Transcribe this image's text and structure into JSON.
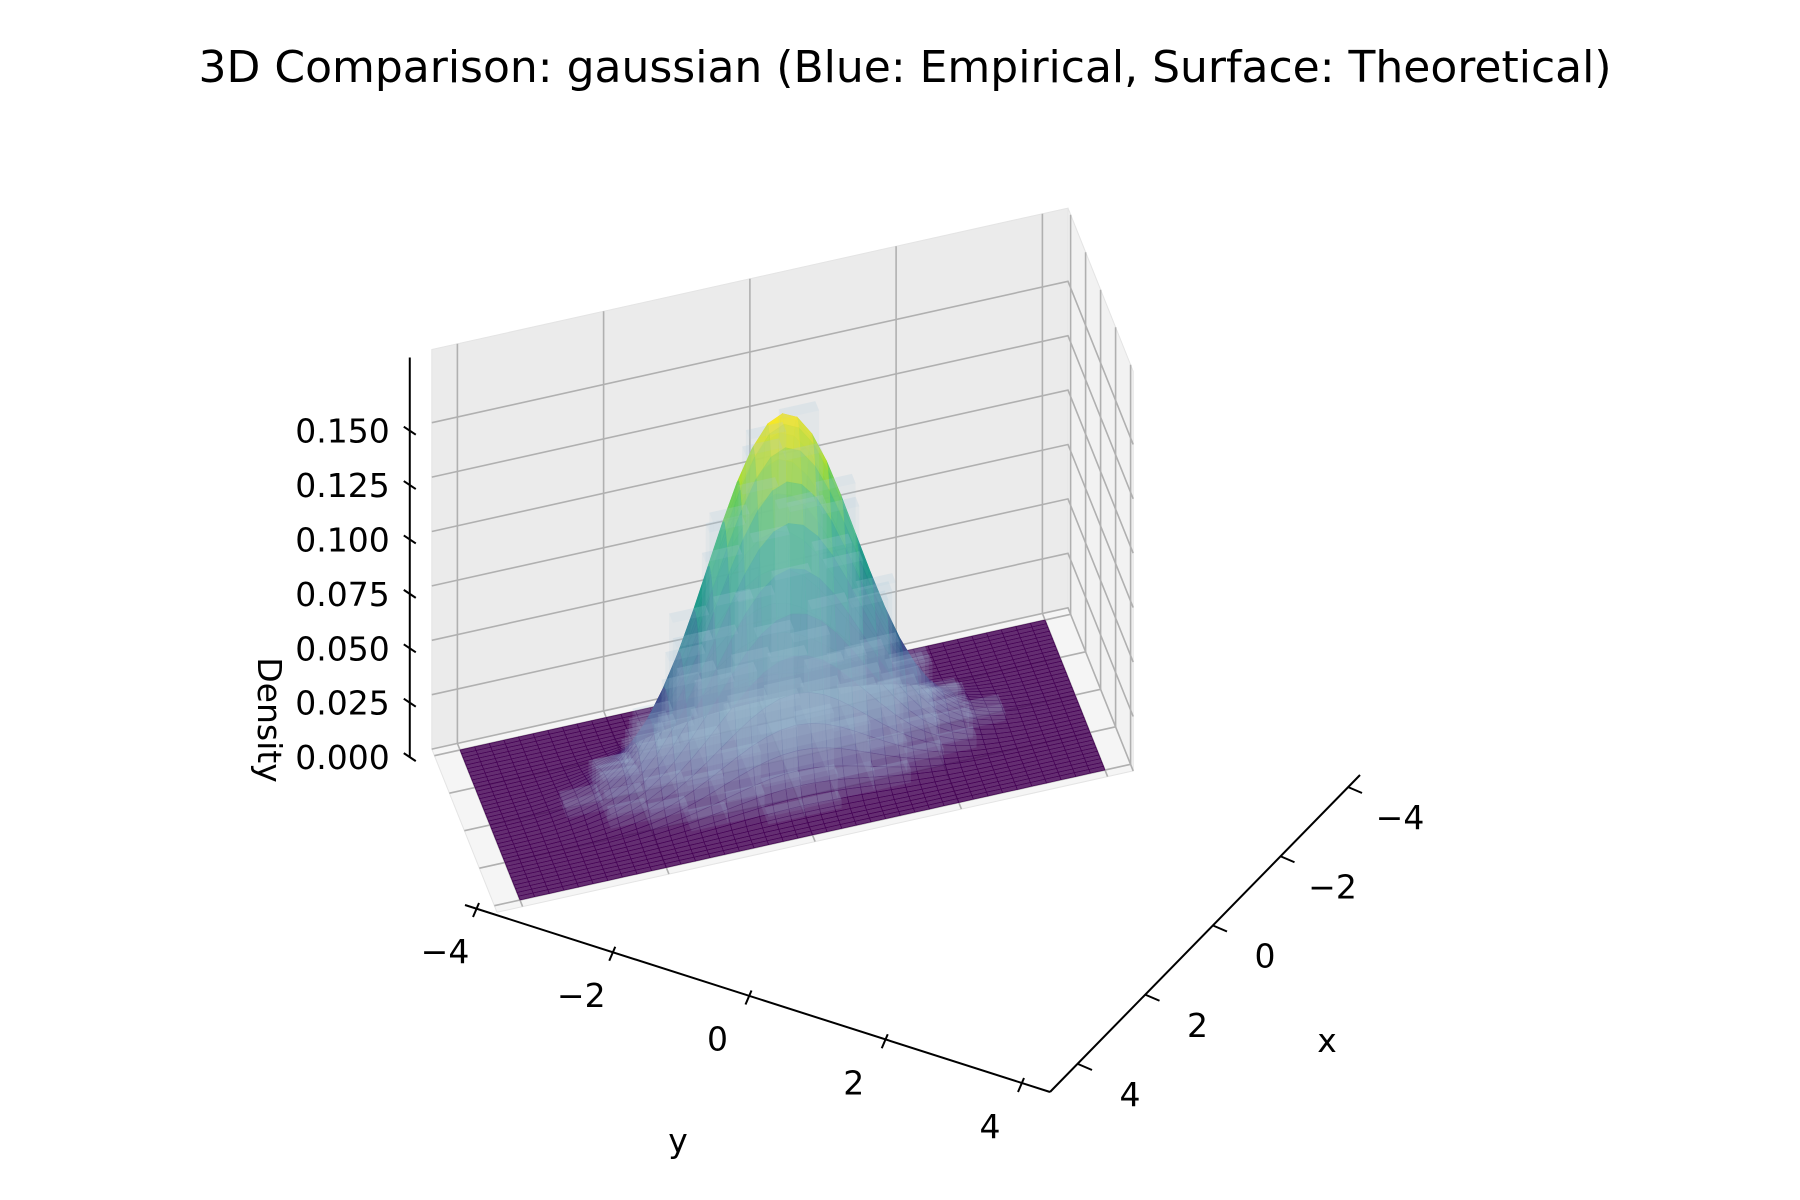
{
  "chart_data": {
    "type": "surface3d",
    "title": "3D Comparison: gaussian (Blue: Empirical, Surface: Theoretical)",
    "xlabel": "x",
    "ylabel": "y",
    "zlabel": "Density",
    "x_ticks": [
      "−4",
      "−2",
      "0",
      "2",
      "4"
    ],
    "y_ticks": [
      "−4",
      "−2",
      "0",
      "2",
      "4"
    ],
    "z_ticks": [
      "0.000",
      "0.025",
      "0.050",
      "0.075",
      "0.100",
      "0.125",
      "0.150"
    ],
    "xlim": [
      -4,
      4
    ],
    "ylim": [
      -4,
      4
    ],
    "zlim": [
      0,
      0.17
    ],
    "grid": true,
    "series": [
      {
        "name": "Empirical",
        "kind": "histogram-bars",
        "color": "#aac8dc"
      },
      {
        "name": "Theoretical",
        "kind": "surface",
        "colormap": "viridis",
        "function": "bivariate standard normal density",
        "mean": [
          0,
          0
        ],
        "sigma": [
          1,
          1
        ],
        "peak": 0.159
      }
    ]
  }
}
